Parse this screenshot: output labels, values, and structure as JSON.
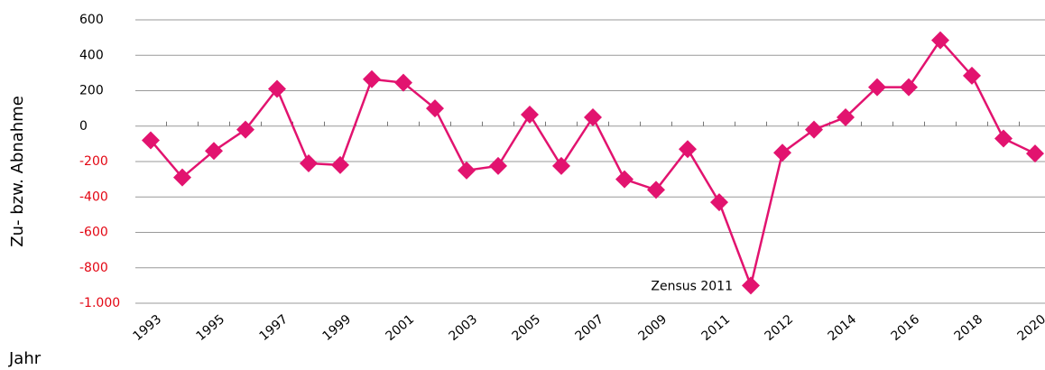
{
  "chart_data": {
    "type": "line",
    "y_label": "Zu- bzw. Abnahme",
    "x_label": "Jahr",
    "annotation": "Zensus 2011",
    "annotation_index": 19,
    "categories": [
      "1993",
      null,
      "1995",
      null,
      "1997",
      null,
      "1999",
      null,
      "2001",
      null,
      "2003",
      null,
      "2005",
      null,
      "2007",
      null,
      "2009",
      null,
      "2011",
      null,
      "2012",
      null,
      "2014",
      null,
      "2016",
      null,
      "2018",
      null,
      "2020"
    ],
    "series": [
      {
        "color": "#e2136f",
        "values": [
          -80,
          -290,
          -140,
          -20,
          210,
          -210,
          -220,
          265,
          245,
          100,
          -250,
          -225,
          65,
          -225,
          50,
          -300,
          -360,
          -130,
          -430,
          -900,
          -150,
          -20,
          50,
          220,
          220,
          485,
          285,
          -70,
          -155
        ]
      }
    ],
    "ylim": [
      -1000,
      600
    ],
    "yticks": [
      600,
      400,
      200,
      0,
      -200,
      -400,
      -600,
      -800,
      {
        "value": -1000,
        "label": "-1.000"
      }
    ],
    "negative_tick_color": "#e30613",
    "grid": true
  }
}
